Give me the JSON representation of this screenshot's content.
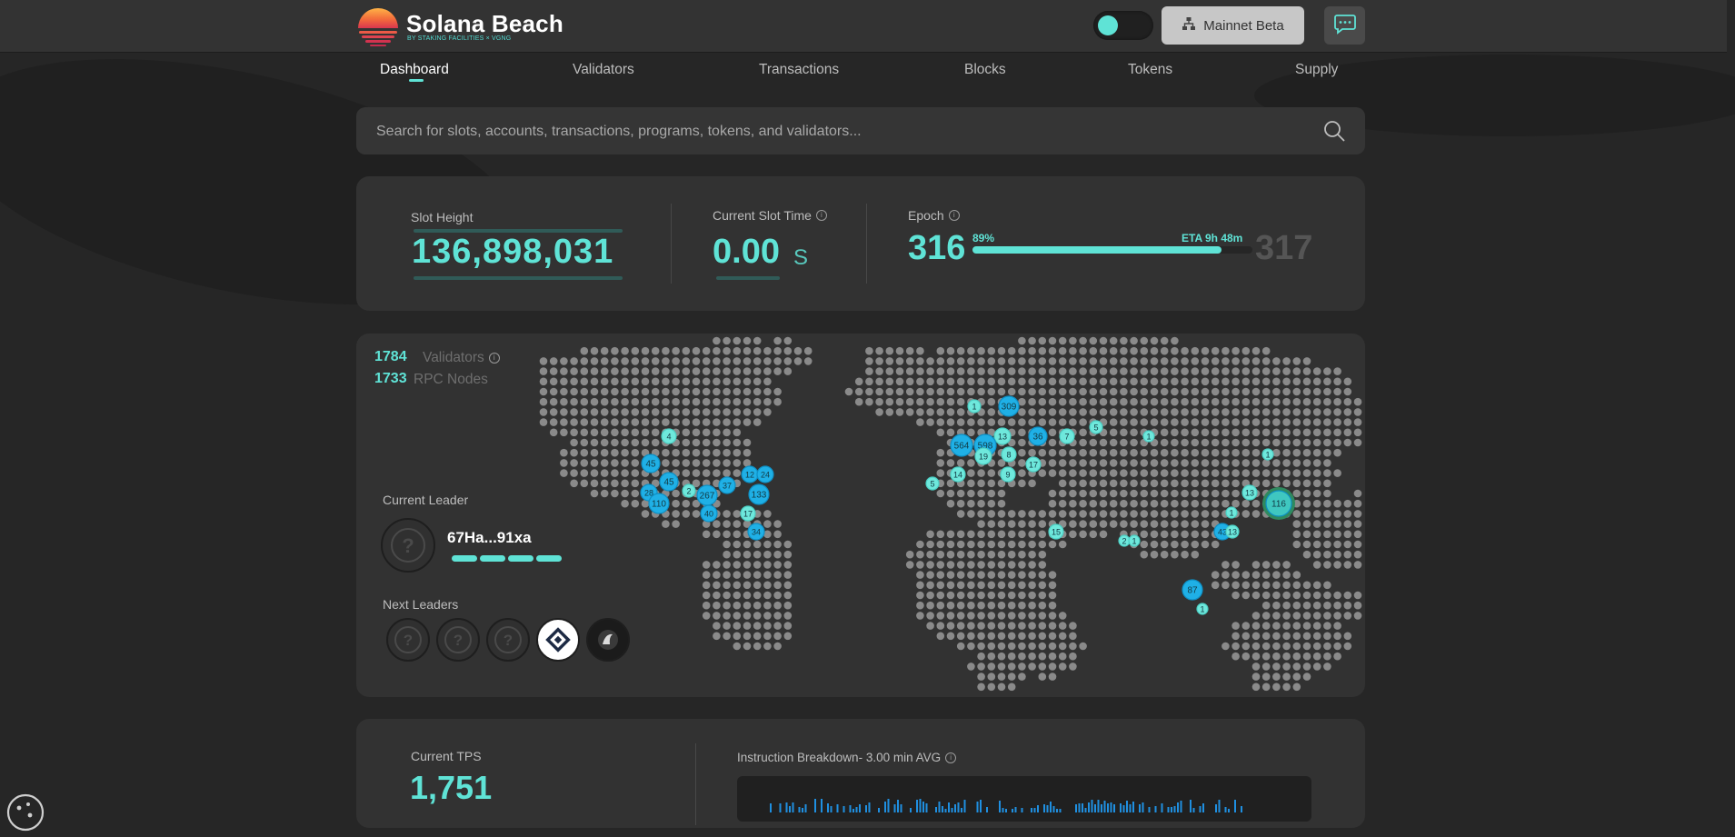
{
  "header": {
    "brand_title": "Solana Beach",
    "brand_subtitle": "BY STAKING FACILITIES × VGNG",
    "network_label": "Mainnet Beta",
    "icons": [
      "sunset-logo-icon",
      "network-icon",
      "chat-icon"
    ]
  },
  "nav": {
    "items": [
      {
        "label": "Dashboard",
        "active": true
      },
      {
        "label": "Validators",
        "active": false
      },
      {
        "label": "Transactions",
        "active": false
      },
      {
        "label": "Blocks",
        "active": false
      },
      {
        "label": "Tokens",
        "active": false
      },
      {
        "label": "Supply",
        "active": false
      }
    ]
  },
  "search": {
    "placeholder": "Search for slots, accounts, transactions, programs, tokens, and validators..."
  },
  "stats": {
    "slot_height_label": "Slot Height",
    "slot_height": "136,898,031",
    "slot_time_label": "Current Slot Time",
    "slot_time_value": "0.00",
    "slot_time_unit": "S",
    "epoch_label": "Epoch",
    "epoch_current": "316",
    "epoch_next": "317",
    "epoch_progress_label": "89%",
    "epoch_progress": 0.89,
    "epoch_eta": "ETA 9h 48m"
  },
  "network": {
    "validators_count": "1784",
    "validators_label": "Validators",
    "rpc_count": "1733",
    "rpc_label": "RPC Nodes",
    "current_leader_label": "Current Leader",
    "current_leader_name": "67Ha...91xa",
    "next_leaders_label": "Next Leaders",
    "cluster_labels": [
      "309",
      "1",
      "13",
      "36",
      "7",
      "5",
      "1",
      "564",
      "598",
      "19",
      "8",
      "17",
      "14",
      "9",
      "5",
      "4",
      "45",
      "45",
      "2",
      "37",
      "12",
      "24",
      "28",
      "267",
      "133",
      "110",
      "40",
      "17",
      "34",
      "1",
      "13",
      "116",
      "1",
      "43",
      "13",
      "15",
      "2",
      "1",
      "87",
      "1"
    ]
  },
  "tps": {
    "label": "Current TPS",
    "value": "1,751",
    "breakdown_label": "Instruction Breakdown- 3.00 min AVG"
  },
  "colors": {
    "accent": "#5fe3d6",
    "cluster": "#1fb0e6",
    "background": "#262626",
    "panel": "#323232"
  }
}
